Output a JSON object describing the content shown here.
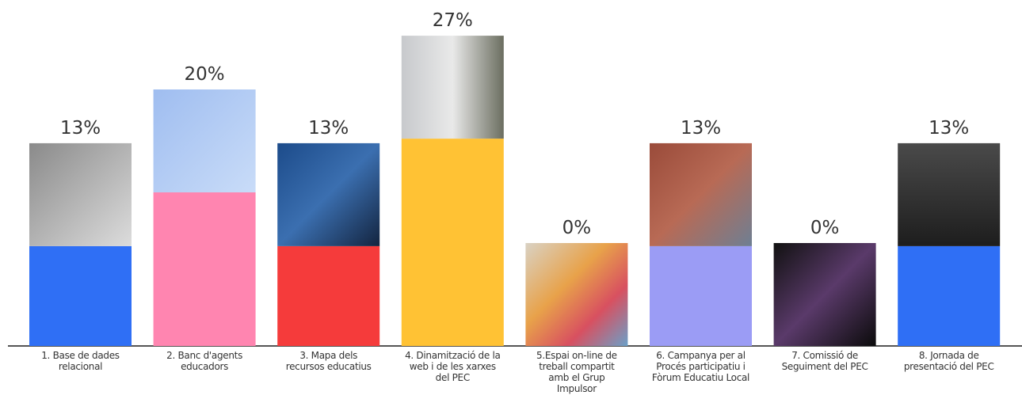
{
  "chart_data": {
    "type": "bar",
    "categories": [
      "1. Base de dades relacional",
      "2. Banc d'agents educadors",
      "3. Mapa dels recursos educatius",
      "4. Dinamització de la web i de les xarxes del PEC",
      "5.Espai on-line de treball compartit amb el Grup Impulsor",
      "6. Campanya per al Procés participatiu i Fòrum Educatiu Local",
      "7. Comissió de Seguiment del PEC",
      "8. Jornada de presentació del PEC"
    ],
    "values": [
      13,
      20,
      13,
      27,
      0,
      13,
      0,
      13
    ],
    "value_labels": [
      "13%",
      "20%",
      "13%",
      "27%",
      "0%",
      "13%",
      "0%",
      "13%"
    ],
    "colors": [
      "#2f6ff5",
      "#ff85b0",
      "#f53b3b",
      "#ffc234",
      "#ffffff",
      "#9b9cf5",
      "#ffffff",
      "#2f6ff5"
    ]
  }
}
